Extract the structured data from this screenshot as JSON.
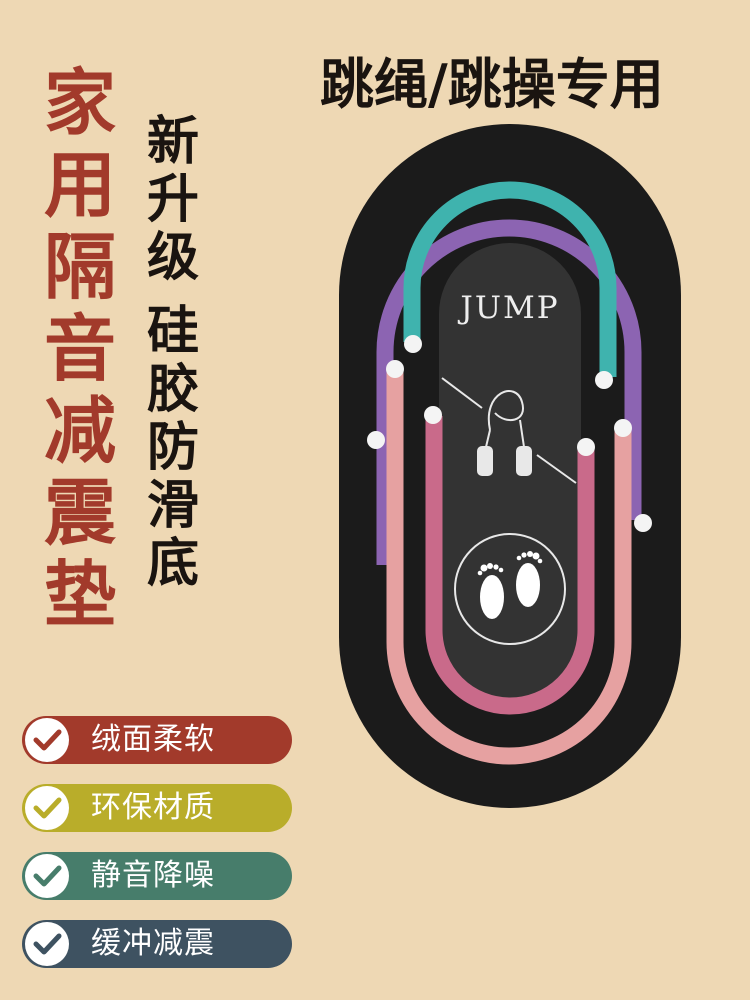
{
  "title_vertical": [
    "家",
    "用",
    "隔",
    "音",
    "减",
    "震",
    "垫"
  ],
  "subtitle_col1": [
    "新",
    "升",
    "级"
  ],
  "subtitle_col2": [
    "硅",
    "胶",
    "防",
    "滑",
    "底"
  ],
  "heading": "跳绳/跳操专用",
  "mat_label": "JUMP",
  "colors": {
    "background": "#eed8b4",
    "title": "#a23a2b",
    "mat_outer": "#1b1b1b",
    "mat_inner": "#333333",
    "stripe_purple": "#8c64b2",
    "stripe_teal": "#3fb3ae",
    "stripe_pink_light": "#e6a1a1",
    "stripe_pink_dark": "#c96a8a"
  },
  "icons": [
    "jump-rope-icon",
    "footprints-icon",
    "check-icon"
  ],
  "features": [
    {
      "label": "绒面柔软",
      "color": "#a23a2b"
    },
    {
      "label": "环保材质",
      "color": "#b9ad2a"
    },
    {
      "label": "静音降噪",
      "color": "#477d6b"
    },
    {
      "label": "缓冲减震",
      "color": "#3e5261"
    }
  ]
}
